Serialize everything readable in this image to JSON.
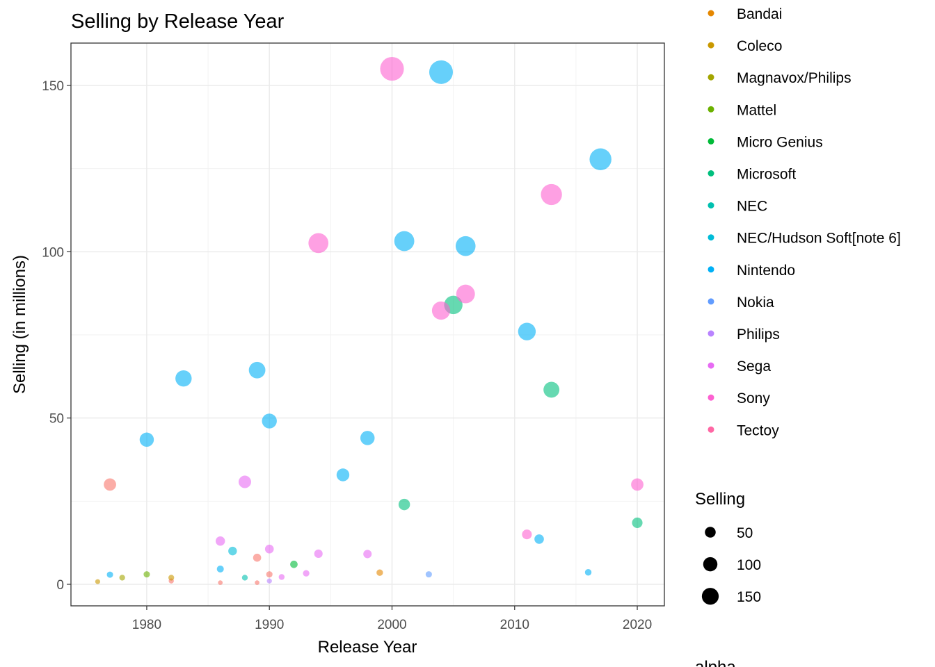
{
  "chart_data": {
    "type": "scatter",
    "title": "Selling by Release Year",
    "x_label": "Release Year",
    "y_label": "Selling (in millions)",
    "xlim": [
      1973.82,
      2022.21
    ],
    "ylim": [
      -6.48,
      162.74
    ],
    "xticks": [
      1980,
      1990,
      2000,
      2010,
      2020
    ],
    "yticks": [
      0,
      50,
      100,
      150
    ],
    "grid": true,
    "opacity": 0.6,
    "size_legend": {
      "title": "Selling",
      "breaks": [
        50,
        100,
        150
      ]
    },
    "alpha_legend": {
      "title": "alpha"
    },
    "series": [
      {
        "name": null,
        "color": "#F8766D",
        "x": [
          1977,
          1982,
          1986,
          1989,
          1989,
          1990
        ],
        "values": [
          30,
          1,
          0.5,
          8,
          0.5,
          3
        ]
      },
      {
        "name": "Bandai",
        "color": "#E58700",
        "x": [
          1999
        ],
        "values": [
          3.5
        ]
      },
      {
        "name": "Coleco",
        "color": "#C99800",
        "x": [
          1976,
          1982
        ],
        "values": [
          0.8,
          2
        ]
      },
      {
        "name": "Magnavox/Philips",
        "color": "#A3A500",
        "x": [
          1978
        ],
        "values": [
          2
        ]
      },
      {
        "name": "Mattel",
        "color": "#6BB100",
        "x": [
          1980
        ],
        "values": [
          3
        ]
      },
      {
        "name": "Micro Genius",
        "color": "#00BA38",
        "x": [
          1992
        ],
        "values": [
          6
        ]
      },
      {
        "name": "Microsoft",
        "color": "#00BF7D",
        "x": [
          2001,
          2005,
          2013,
          2020
        ],
        "values": [
          24,
          84,
          58.5,
          18.5
        ]
      },
      {
        "name": "NEC",
        "color": "#00C0AF",
        "x": [
          1988
        ],
        "values": [
          2
        ]
      },
      {
        "name": "NEC/Hudson Soft[note 6]",
        "color": "#00BCD8",
        "x": [
          1987
        ],
        "values": [
          10
        ]
      },
      {
        "name": "Nintendo",
        "color": "#00B0F6",
        "x": [
          1977,
          1980,
          1983,
          1986,
          1989,
          1990,
          1996,
          1998,
          2001,
          2004,
          2006,
          2011,
          2012,
          2016,
          2017
        ],
        "values": [
          2.9,
          43.5,
          61.9,
          4.6,
          64.4,
          49.1,
          32.9,
          44,
          103.2,
          154,
          101.7,
          76,
          13.6,
          3.6,
          127.8
        ]
      },
      {
        "name": "Nokia",
        "color": "#619CFF",
        "x": [
          2003
        ],
        "values": [
          3
        ]
      },
      {
        "name": "Philips",
        "color": "#B983FF",
        "x": [
          1990
        ],
        "values": [
          1
        ]
      },
      {
        "name": "Sega",
        "color": "#E76BF3",
        "x": [
          1986,
          1988,
          1990,
          1991,
          1993,
          1994,
          1998
        ],
        "values": [
          13,
          30.8,
          10.6,
          2.2,
          3.3,
          9.2,
          9.1
        ]
      },
      {
        "name": "Sony",
        "color": "#FD61D1",
        "x": [
          1994,
          2000,
          2004,
          2006,
          2011,
          2013,
          2020
        ],
        "values": [
          102.6,
          155,
          82.3,
          87.3,
          15,
          117.2,
          30
        ]
      },
      {
        "name": "Tectoy",
        "color": "#FF67A4",
        "x": [],
        "values": []
      }
    ]
  }
}
